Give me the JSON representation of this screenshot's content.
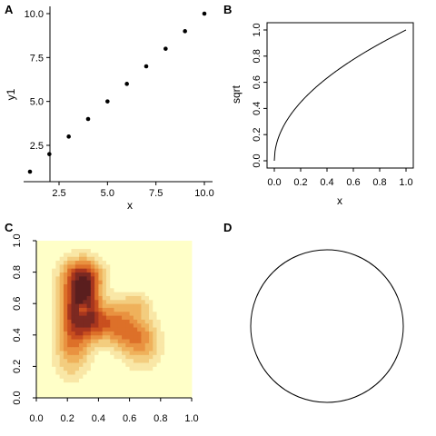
{
  "chart_data": [
    {
      "panel": "A",
      "type": "scatter",
      "x": [
        1,
        2,
        3,
        4,
        5,
        6,
        7,
        8,
        9,
        10
      ],
      "y": [
        1,
        2,
        3,
        4,
        5,
        6,
        7,
        8,
        9,
        10
      ],
      "xlabel": "x",
      "ylabel": "y1",
      "xticks": [
        "2.5",
        "5.0",
        "7.5",
        "10.0"
      ],
      "yticks": [
        "2.5",
        "5.0",
        "7.5",
        "10.0"
      ],
      "xlim": [
        1,
        10
      ],
      "ylim": [
        1,
        10
      ],
      "axes": "left-bottom",
      "color": "#000000"
    },
    {
      "panel": "B",
      "type": "line",
      "function": "sqrt",
      "x": [
        0,
        0.01,
        0.02,
        0.05,
        0.1,
        0.15,
        0.2,
        0.3,
        0.4,
        0.5,
        0.6,
        0.7,
        0.8,
        0.9,
        1.0
      ],
      "y": [
        0,
        0.1,
        0.141,
        0.224,
        0.316,
        0.387,
        0.447,
        0.548,
        0.632,
        0.707,
        0.775,
        0.837,
        0.894,
        0.949,
        1.0
      ],
      "xlabel": "x",
      "ylabel": "sqrt",
      "xticks": [
        "0.0",
        "0.2",
        "0.4",
        "0.6",
        "0.8",
        "1.0"
      ],
      "yticks": [
        "0.0",
        "0.2",
        "0.4",
        "0.6",
        "0.8",
        "1.0"
      ],
      "xlim": [
        0,
        1
      ],
      "ylim": [
        0,
        1
      ],
      "axes": "box",
      "color": "#000000"
    },
    {
      "panel": "C",
      "type": "heatmap",
      "xticks": [
        "0.0",
        "0.2",
        "0.4",
        "0.6",
        "0.8",
        "1.0"
      ],
      "yticks": [
        "0.0",
        "0.2",
        "0.4",
        "0.6",
        "0.8",
        "1.0"
      ],
      "xlim": [
        0,
        1
      ],
      "ylim": [
        0,
        1
      ],
      "palette": [
        "#FFFFC8",
        "#F9E7A6",
        "#F3CD7F",
        "#EFB15B",
        "#E99240",
        "#DD7029",
        "#C94F1F",
        "#A8361E",
        "#7C2921",
        "#5A1E1E"
      ],
      "density_components": [
        {
          "cx": 0.25,
          "cy": 0.58,
          "sx": 0.07,
          "sy": 0.17,
          "w": 1.0
        },
        {
          "cx": 0.34,
          "cy": 0.62,
          "sx": 0.06,
          "sy": 0.15,
          "w": 0.75
        },
        {
          "cx": 0.3,
          "cy": 0.78,
          "sx": 0.1,
          "sy": 0.07,
          "w": 0.55
        },
        {
          "cx": 0.42,
          "cy": 0.46,
          "sx": 0.07,
          "sy": 0.07,
          "w": 0.45
        },
        {
          "cx": 0.58,
          "cy": 0.43,
          "sx": 0.1,
          "sy": 0.09,
          "w": 0.55
        },
        {
          "cx": 0.68,
          "cy": 0.34,
          "sx": 0.09,
          "sy": 0.11,
          "w": 0.45
        },
        {
          "cx": 0.65,
          "cy": 0.6,
          "sx": 0.07,
          "sy": 0.05,
          "w": 0.3
        },
        {
          "cx": 0.22,
          "cy": 0.3,
          "sx": 0.08,
          "sy": 0.14,
          "w": 0.4
        },
        {
          "cx": 0.5,
          "cy": 0.55,
          "sx": 0.08,
          "sy": 0.08,
          "w": 0.3
        },
        {
          "cx": 0.3,
          "cy": 0.56,
          "sx": 0.025,
          "sy": 0.035,
          "w": -0.55
        }
      ]
    },
    {
      "panel": "D",
      "type": "shape",
      "shape": "circle",
      "color": "#000000"
    }
  ],
  "panels": {
    "A": {
      "label": "A"
    },
    "B": {
      "label": "B"
    },
    "C": {
      "label": "C"
    },
    "D": {
      "label": "D"
    }
  }
}
